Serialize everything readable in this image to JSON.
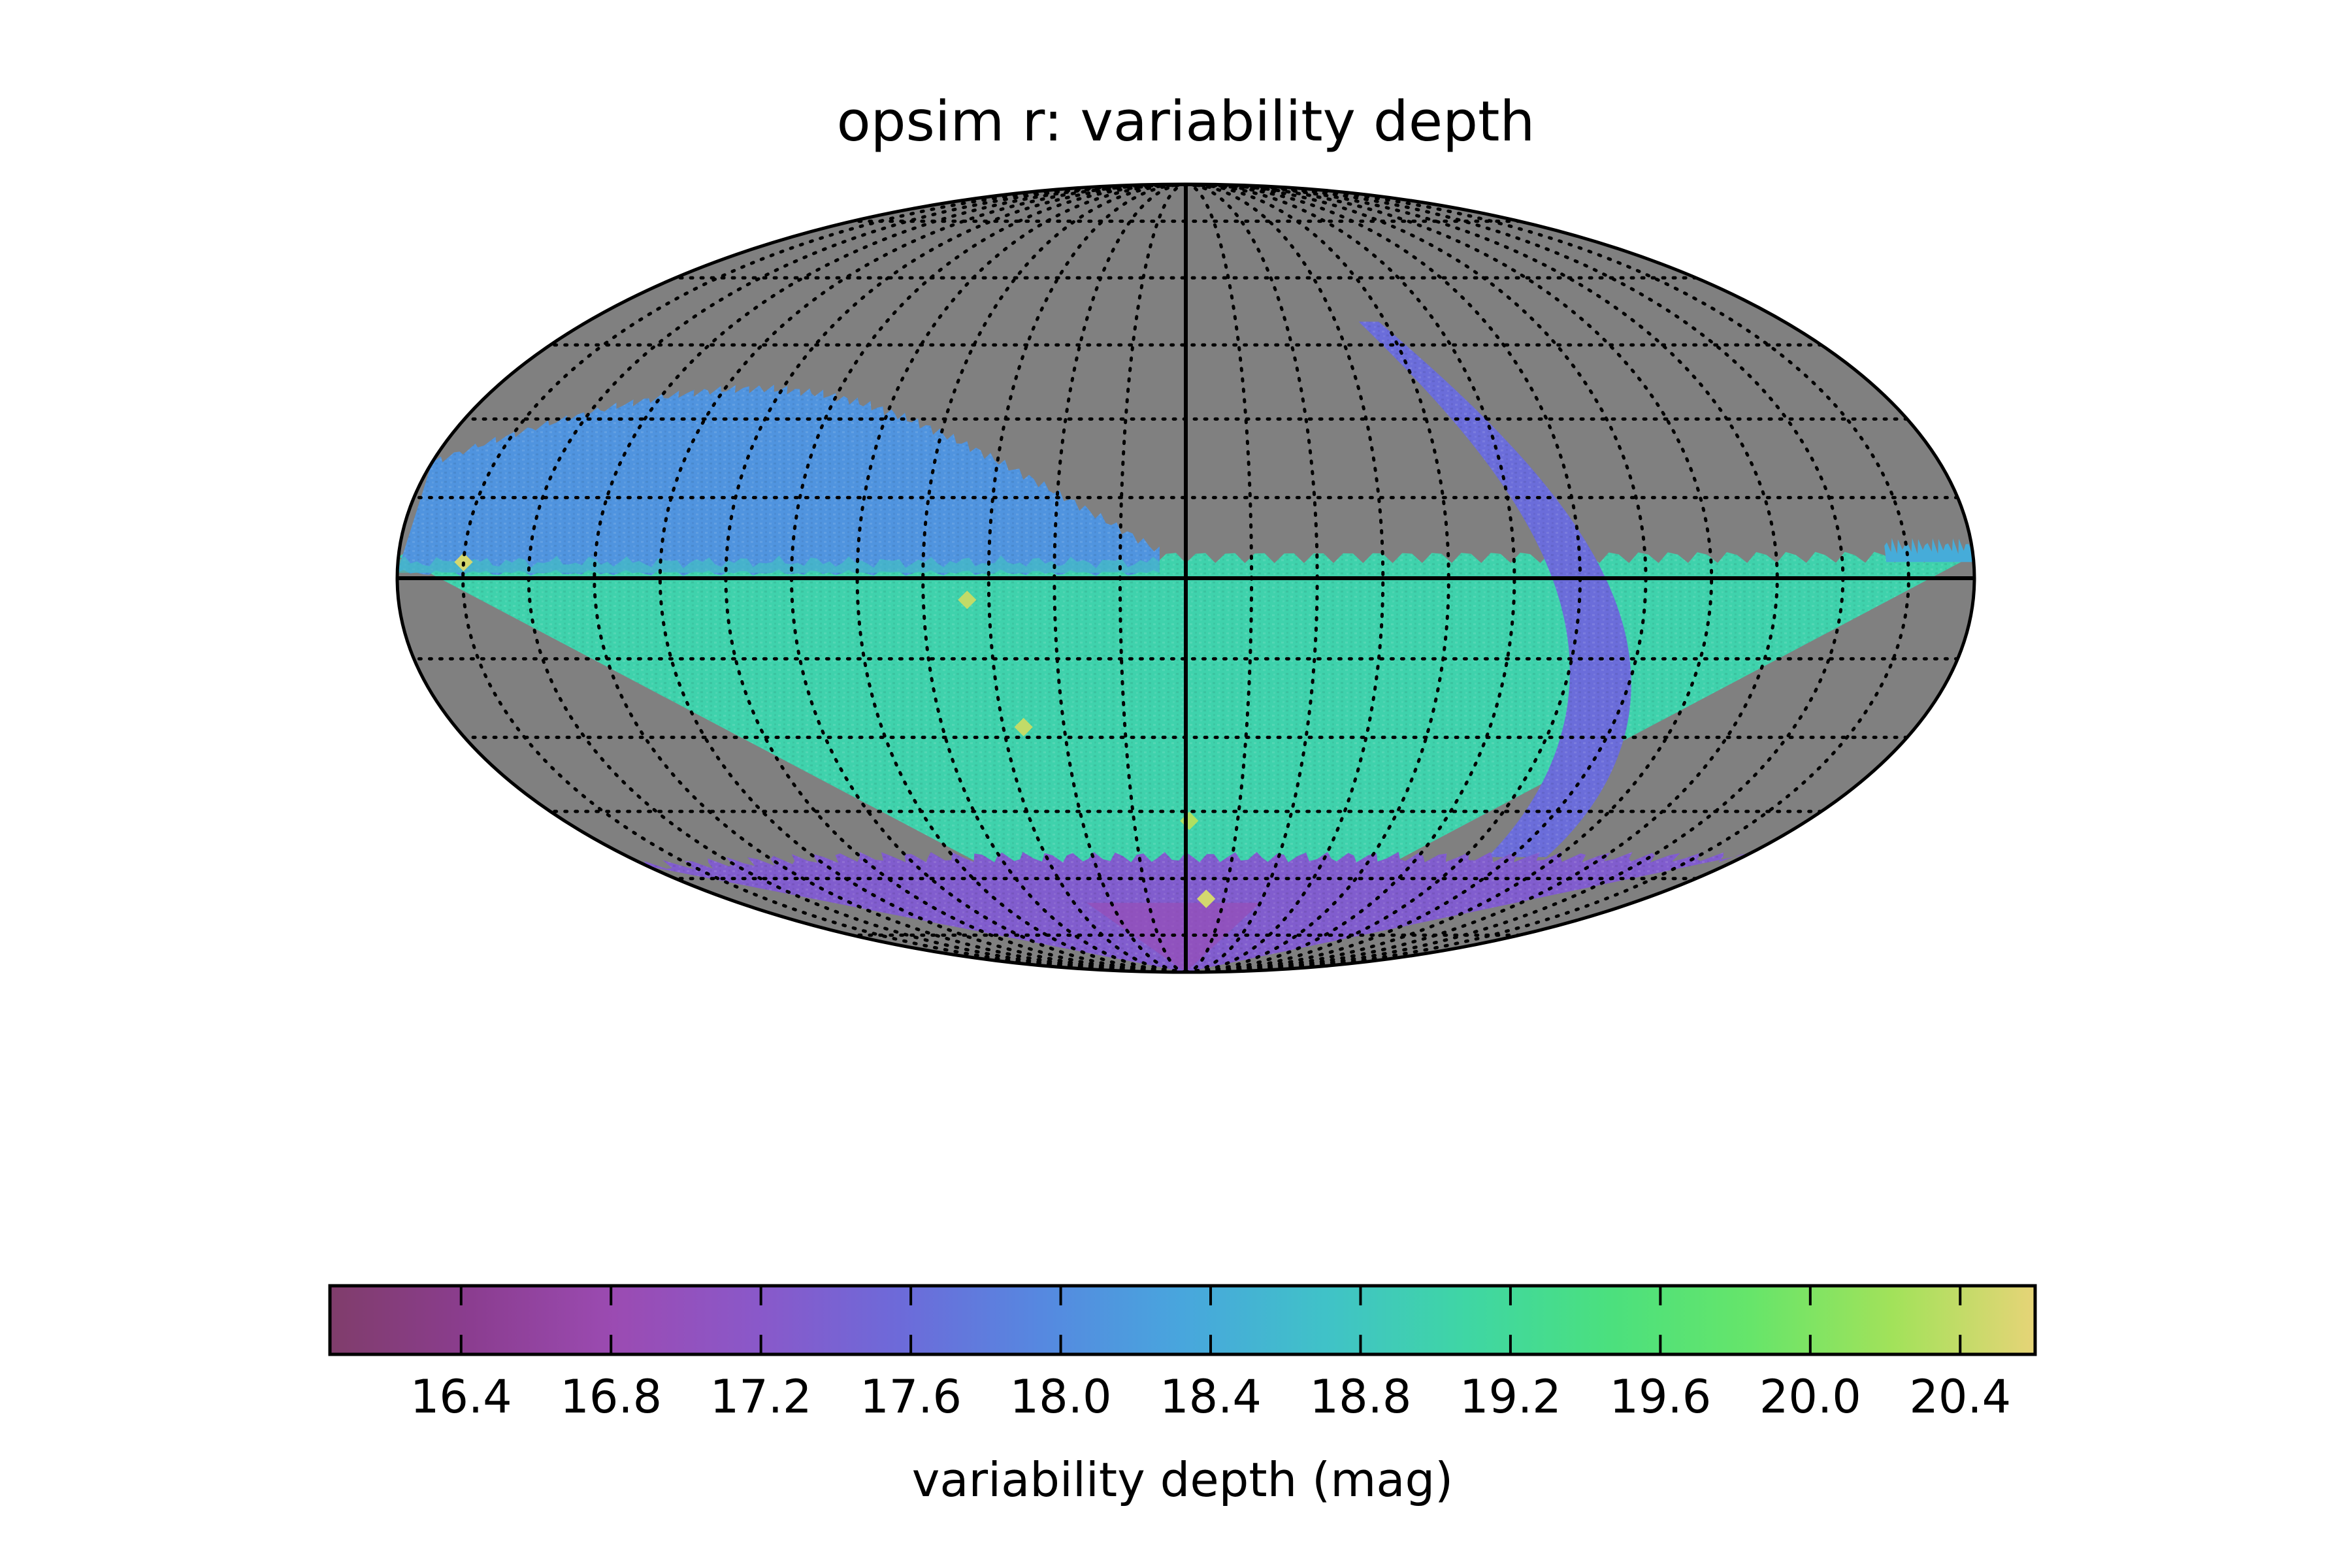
{
  "chart_data": {
    "type": "heatmap",
    "projection": "mollweide",
    "title": "opsim  r: variability depth",
    "grid": true,
    "background_color": "#808080",
    "colorbar": {
      "label": "variability depth (mag)",
      "range": [
        16.05,
        20.6
      ],
      "ticks": [
        16.4,
        16.8,
        17.2,
        17.6,
        18.0,
        18.4,
        18.8,
        19.2,
        19.6,
        20.0,
        20.4
      ],
      "tick_labels": [
        "16.4",
        "16.8",
        "17.2",
        "17.6",
        "18.0",
        "18.4",
        "18.8",
        "19.2",
        "19.6",
        "20.0",
        "20.4"
      ],
      "colors": [
        "#803d6b",
        "#8b3d90",
        "#9b4bb2",
        "#8a58c9",
        "#6d6ad9",
        "#5688e0",
        "#48a6dd",
        "#40c2c8",
        "#3fd6a4",
        "#4be07e",
        "#66e56a",
        "#a2e25a",
        "#e6d477"
      ]
    },
    "regions": [
      {
        "name": "main survey footprint",
        "value": 19.0
      },
      {
        "name": "north ecliptic / northern band",
        "value": 18.1
      },
      {
        "name": "galactic plane band",
        "value": 17.6
      },
      {
        "name": "south celestial pole band",
        "value": 17.3
      },
      {
        "name": "unobserved sky",
        "value": null
      }
    ],
    "hotspots": [
      {
        "lon": 165,
        "lat": 3,
        "value": 20.5
      },
      {
        "lon": 50,
        "lat": -4,
        "value": 20.4
      },
      {
        "lon": 40,
        "lat": -28,
        "value": 20.4
      },
      {
        "lon": -1,
        "lat": -47,
        "value": 20.3
      },
      {
        "lon": -8,
        "lat": -65,
        "value": 20.5
      }
    ]
  }
}
